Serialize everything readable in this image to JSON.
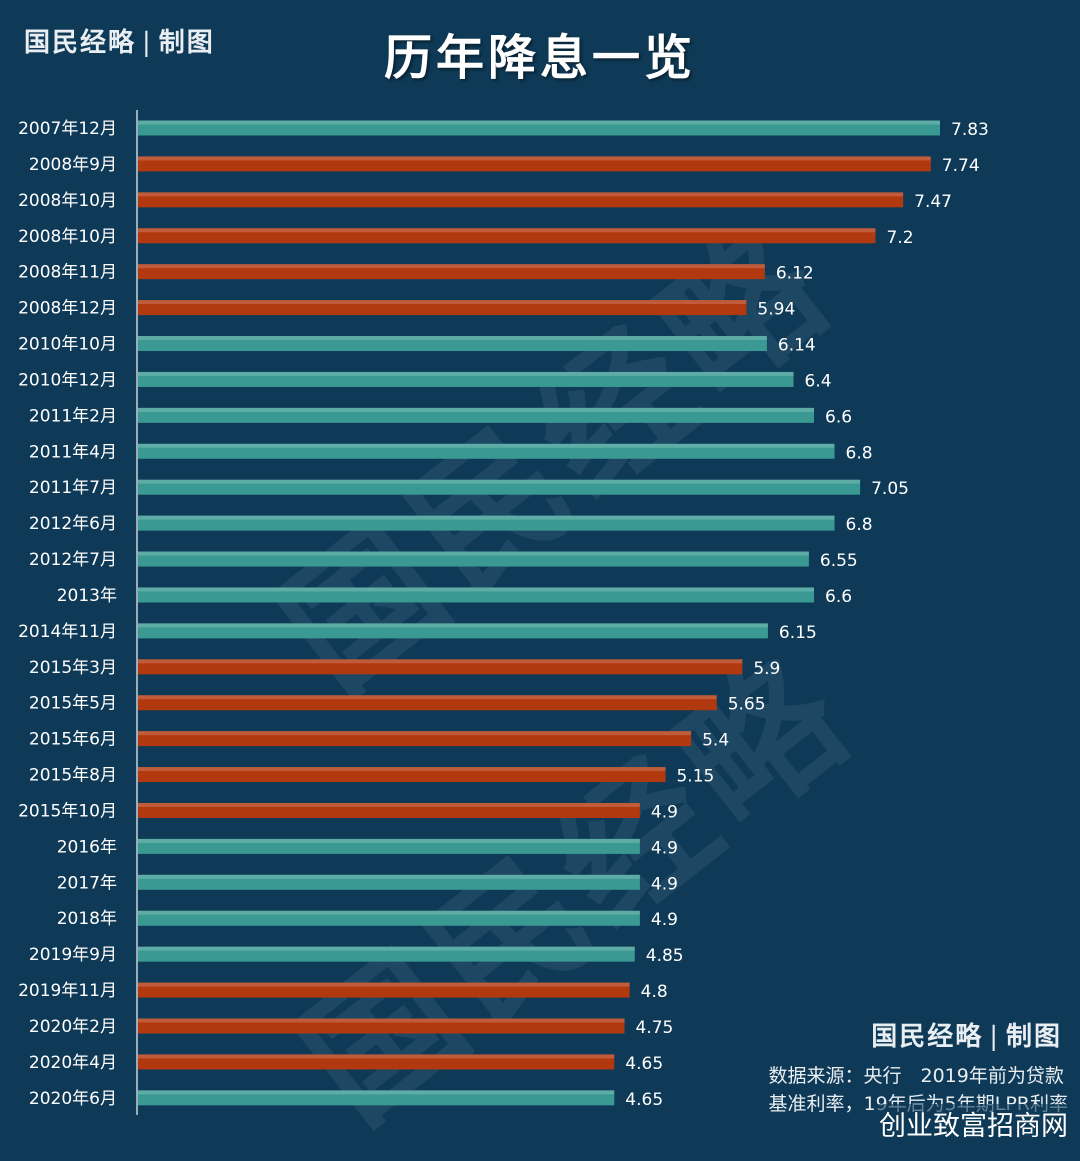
{
  "header": {
    "brand": "国民经略",
    "brand_separator": "|",
    "brand_suffix": "制图"
  },
  "footer": {
    "brand": "国民经略",
    "brand_separator": "|",
    "brand_suffix": "制图",
    "source_line1": "数据来源：央行　2019年前为贷款",
    "source_line2": "基准利率，19年后为5年期LPR利率",
    "site_watermark": "创业致富招商网"
  },
  "background_watermark": "国民经略",
  "colors": {
    "background": "#0f3a57",
    "teal_bar": "#3a9a93",
    "red_bar": "#b2390f",
    "text": "#ffffff"
  },
  "chart_data": {
    "type": "bar",
    "orientation": "horizontal",
    "title": "历年降息一览",
    "xlabel": "",
    "ylabel": "",
    "xlim": [
      0,
      8.5
    ],
    "grid": false,
    "legend": "none",
    "categories": [
      "2007年12月",
      "2008年9月",
      "2008年10月",
      "2008年10月",
      "2008年11月",
      "2008年12月",
      "2010年10月",
      "2010年12月",
      "2011年2月",
      "2011年4月",
      "2011年7月",
      "2012年6月",
      "2012年7月",
      "2013年",
      "2014年11月",
      "2015年3月",
      "2015年5月",
      "2015年6月",
      "2015年8月",
      "2015年10月",
      "2016年",
      "2017年",
      "2018年",
      "2019年9月",
      "2019年11月",
      "2020年2月",
      "2020年4月",
      "2020年6月"
    ],
    "values": [
      7.83,
      7.74,
      7.47,
      7.2,
      6.12,
      5.94,
      6.14,
      6.4,
      6.6,
      6.8,
      7.05,
      6.8,
      6.55,
      6.6,
      6.15,
      5.9,
      5.65,
      5.4,
      5.15,
      4.9,
      4.9,
      4.9,
      4.9,
      4.85,
      4.8,
      4.75,
      4.65,
      4.65
    ],
    "bar_colors": [
      "teal",
      "red",
      "red",
      "red",
      "red",
      "red",
      "teal",
      "teal",
      "teal",
      "teal",
      "teal",
      "teal",
      "teal",
      "teal",
      "teal",
      "red",
      "red",
      "red",
      "red",
      "red",
      "teal",
      "teal",
      "teal",
      "teal",
      "red",
      "red",
      "red",
      "teal"
    ]
  }
}
